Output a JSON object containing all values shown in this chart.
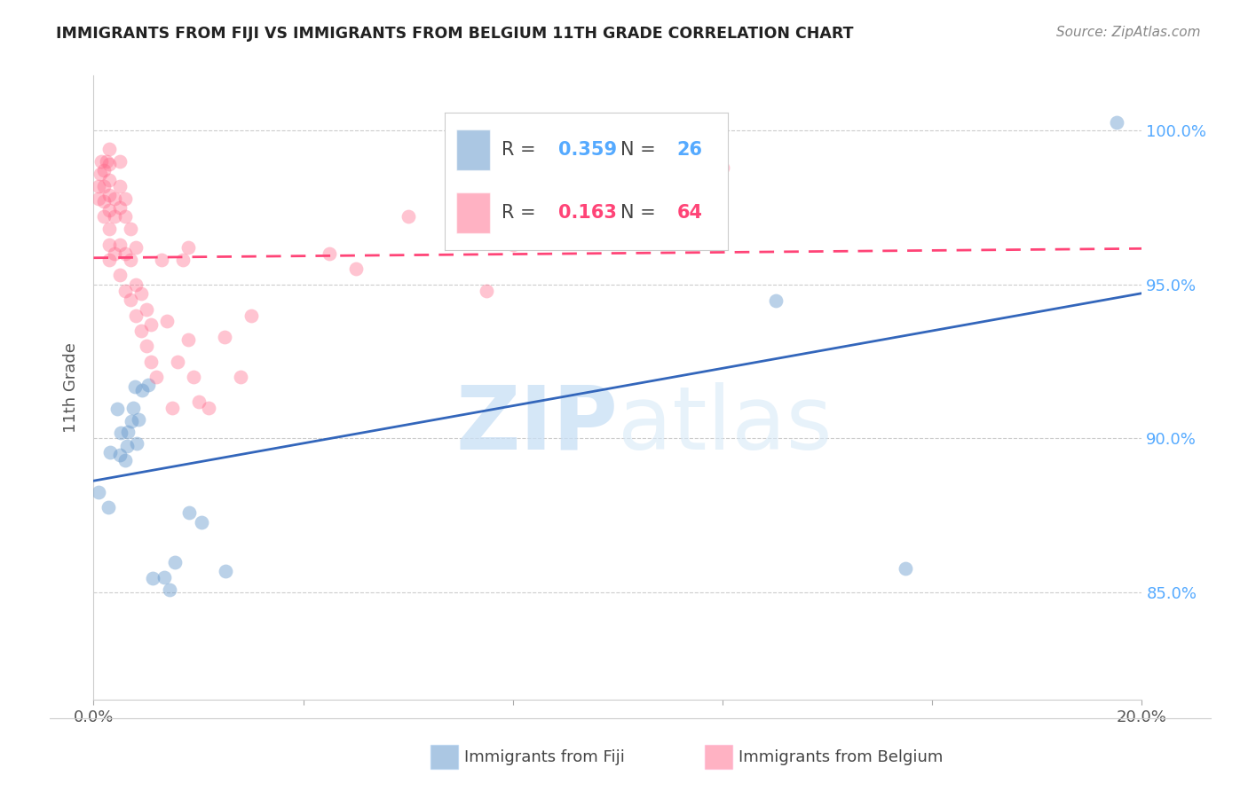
{
  "title": "IMMIGRANTS FROM FIJI VS IMMIGRANTS FROM BELGIUM 11TH GRADE CORRELATION CHART",
  "source": "Source: ZipAtlas.com",
  "ylabel": "11th Grade",
  "ytick_values": [
    0.85,
    0.9,
    0.95,
    1.0
  ],
  "xlim": [
    0.0,
    0.2
  ],
  "ylim": [
    0.815,
    1.018
  ],
  "fiji_color": "#6699CC",
  "belgium_color": "#FF6688",
  "fiji_line_color": "#3366BB",
  "belgium_line_color": "#FF4477",
  "fiji_R": 0.359,
  "fiji_N": 26,
  "belgium_R": 0.163,
  "belgium_N": 64,
  "fiji_label": "Immigrants from Fiji",
  "belgium_label": "Immigrants from Belgium",
  "watermark_zip": "ZIP",
  "watermark_atlas": "atlas",
  "fiji_points_x": [
    0.001,
    0.0028,
    0.0032,
    0.0045,
    0.005,
    0.0052,
    0.006,
    0.0063,
    0.0065,
    0.0072,
    0.0075,
    0.0078,
    0.0082,
    0.0085,
    0.0092,
    0.0105,
    0.0112,
    0.0135,
    0.0145,
    0.0155,
    0.0182,
    0.0205,
    0.0252,
    0.1302,
    0.1548,
    0.1952
  ],
  "fiji_points_y": [
    0.8825,
    0.8775,
    0.8955,
    0.9095,
    0.8945,
    0.9018,
    0.8928,
    0.8975,
    0.902,
    0.9055,
    0.9098,
    0.9168,
    0.8985,
    0.9062,
    0.9158,
    0.9175,
    0.8545,
    0.8548,
    0.8508,
    0.8598,
    0.8758,
    0.8728,
    0.8568,
    0.9448,
    0.8578,
    1.0028
  ],
  "belgium_points_x": [
    0.001,
    0.001,
    0.0012,
    0.0015,
    0.002,
    0.002,
    0.002,
    0.002,
    0.0025,
    0.003,
    0.003,
    0.003,
    0.003,
    0.003,
    0.003,
    0.003,
    0.003,
    0.004,
    0.004,
    0.004,
    0.005,
    0.005,
    0.005,
    0.005,
    0.005,
    0.006,
    0.006,
    0.006,
    0.006,
    0.007,
    0.007,
    0.007,
    0.008,
    0.008,
    0.008,
    0.009,
    0.009,
    0.01,
    0.01,
    0.011,
    0.011,
    0.012,
    0.013,
    0.014,
    0.015,
    0.016,
    0.017,
    0.018,
    0.018,
    0.019,
    0.02,
    0.022,
    0.025,
    0.028,
    0.03,
    0.045,
    0.05,
    0.06,
    0.075,
    0.08,
    0.09,
    0.1,
    0.11,
    0.12
  ],
  "belgium_points_y": [
    0.978,
    0.982,
    0.986,
    0.99,
    0.972,
    0.977,
    0.982,
    0.987,
    0.99,
    0.958,
    0.963,
    0.968,
    0.974,
    0.979,
    0.984,
    0.989,
    0.994,
    0.96,
    0.972,
    0.978,
    0.953,
    0.963,
    0.975,
    0.982,
    0.99,
    0.948,
    0.96,
    0.972,
    0.978,
    0.945,
    0.958,
    0.968,
    0.94,
    0.95,
    0.962,
    0.935,
    0.947,
    0.93,
    0.942,
    0.925,
    0.937,
    0.92,
    0.958,
    0.938,
    0.91,
    0.925,
    0.958,
    0.932,
    0.962,
    0.92,
    0.912,
    0.91,
    0.933,
    0.92,
    0.94,
    0.96,
    0.955,
    0.972,
    0.948,
    0.963,
    0.97,
    0.975,
    0.98,
    0.988
  ]
}
